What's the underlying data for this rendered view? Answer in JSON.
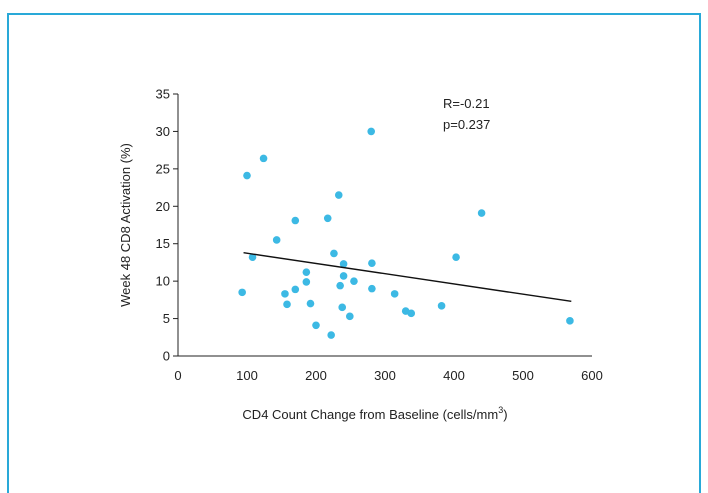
{
  "chart_data": {
    "type": "scatter",
    "title": "",
    "xlabel": "CD4 Count Change from Baseline (cells/mm",
    "xlabel_sup": "3",
    "xlabel_suffix": ")",
    "ylabel": "Week 48 CD8 Activation (%)",
    "xlim": [
      0,
      600
    ],
    "ylim": [
      0,
      35
    ],
    "x_ticks": [
      0,
      100,
      200,
      300,
      400,
      500,
      600
    ],
    "y_ticks": [
      0,
      5,
      10,
      15,
      20,
      25,
      30,
      35
    ],
    "grid": false,
    "point_color": "#3cb9e4",
    "line_color": "#111111",
    "frame_color": "#29a9d8",
    "annotations": [
      "R=-0.21",
      "p=0.237"
    ],
    "trendline": {
      "x": [
        95,
        570
      ],
      "y": [
        13.8,
        7.3
      ]
    },
    "points": [
      {
        "x": 93,
        "y": 8.5
      },
      {
        "x": 100,
        "y": 24.1
      },
      {
        "x": 108,
        "y": 13.2
      },
      {
        "x": 124,
        "y": 26.4
      },
      {
        "x": 143,
        "y": 15.5
      },
      {
        "x": 155,
        "y": 8.3
      },
      {
        "x": 158,
        "y": 6.9
      },
      {
        "x": 170,
        "y": 18.1
      },
      {
        "x": 170,
        "y": 8.9
      },
      {
        "x": 186,
        "y": 11.2
      },
      {
        "x": 186,
        "y": 9.9
      },
      {
        "x": 192,
        "y": 7.0
      },
      {
        "x": 200,
        "y": 4.1
      },
      {
        "x": 217,
        "y": 18.4
      },
      {
        "x": 222,
        "y": 2.8
      },
      {
        "x": 226,
        "y": 13.7
      },
      {
        "x": 233,
        "y": 21.5
      },
      {
        "x": 235,
        "y": 9.4
      },
      {
        "x": 238,
        "y": 6.5
      },
      {
        "x": 240,
        "y": 12.3
      },
      {
        "x": 240,
        "y": 10.7
      },
      {
        "x": 249,
        "y": 5.3
      },
      {
        "x": 255,
        "y": 10.0
      },
      {
        "x": 280,
        "y": 30.0
      },
      {
        "x": 281,
        "y": 12.4
      },
      {
        "x": 281,
        "y": 9.0
      },
      {
        "x": 314,
        "y": 8.3
      },
      {
        "x": 330,
        "y": 6.0
      },
      {
        "x": 338,
        "y": 5.7
      },
      {
        "x": 382,
        "y": 6.7
      },
      {
        "x": 403,
        "y": 13.2
      },
      {
        "x": 440,
        "y": 19.1
      },
      {
        "x": 568,
        "y": 4.7
      }
    ]
  }
}
